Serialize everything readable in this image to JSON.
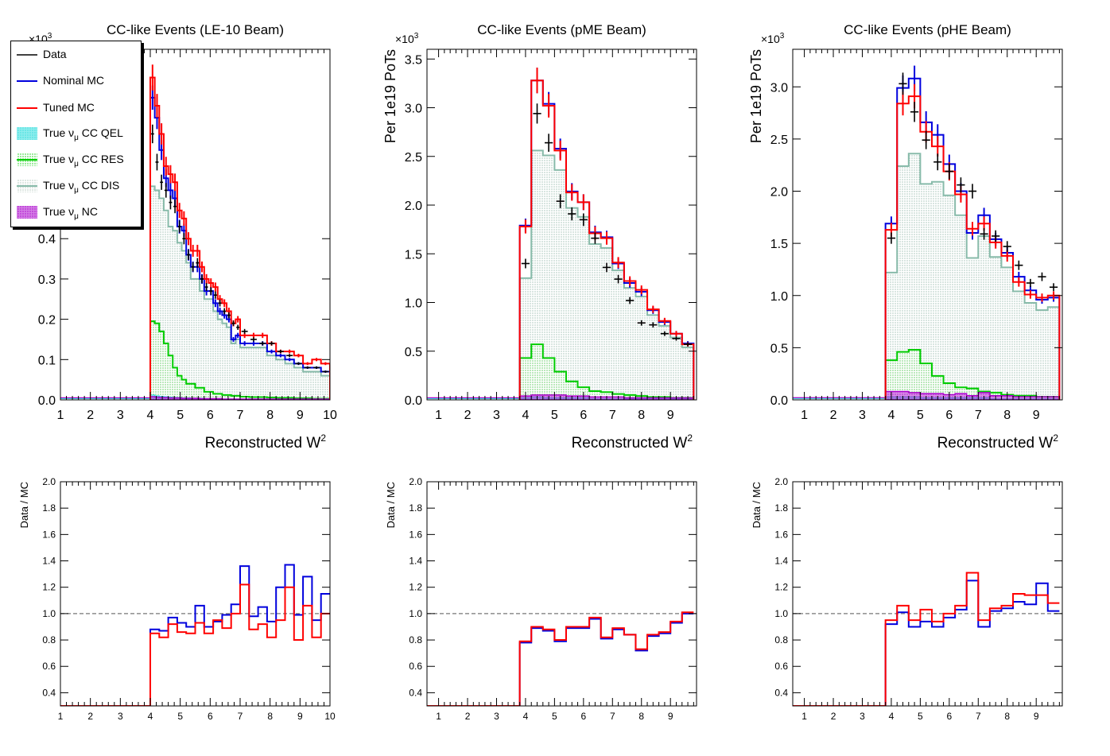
{
  "colors": {
    "data": "#000000",
    "nominal": "#0000dd",
    "tuned": "#ff0000",
    "qel": "#33dddd",
    "res": "#00cc00",
    "dis": "#88bbaa",
    "nc": "#aa00cc",
    "ref": "#777777"
  },
  "legend": {
    "data": "Data",
    "nominal": "Nominal MC",
    "tuned": "Tuned MC",
    "qel_pre": "True ν",
    "qel_sub": "μ",
    "qel_post": " CC QEL",
    "res_pre": "True ν",
    "res_sub": "μ",
    "res_post": " CC RES",
    "dis_pre": "True ν",
    "dis_sub": "μ",
    "dis_post": " CC DIS",
    "nc_pre": "True ν",
    "nc_sub": "μ",
    "nc_post": " NC"
  },
  "chart_data": [
    {
      "type": "histogram",
      "title": "CC-like Events (LE-10 Beam)",
      "xlabel": "Reconstructed W",
      "xlabel_sup": "2",
      "ylabel": "",
      "yscale_label": "×10",
      "yscale_sup": "3",
      "xlim": [
        1,
        10
      ],
      "ylim": [
        0,
        0.87
      ],
      "xticks": [
        "1",
        "2",
        "3",
        "4",
        "5",
        "6",
        "7",
        "8",
        "9",
        "10"
      ],
      "yticks": [
        "0.0",
        "0.1",
        "0.2",
        "0.3",
        "0.4"
      ],
      "bin_edges": [
        4.0,
        4.15,
        4.3,
        4.45,
        4.6,
        4.75,
        4.9,
        5.05,
        5.2,
        5.35,
        5.5,
        5.65,
        5.8,
        5.95,
        6.1,
        6.25,
        6.4,
        6.55,
        6.7,
        6.85,
        7.0,
        7.3,
        7.6,
        7.9,
        8.2,
        8.5,
        8.8,
        9.1,
        9.4,
        9.7,
        10.0
      ],
      "series": [
        {
          "name": "Data",
          "values": [
            0.66,
            0.59,
            0.54,
            0.52,
            0.49,
            0.48,
            0.43,
            0.4,
            0.36,
            0.33,
            0.34,
            0.3,
            0.28,
            0.27,
            0.26,
            0.24,
            0.22,
            0.21,
            0.19,
            0.18,
            0.17,
            0.15,
            0.14,
            0.14,
            0.12,
            0.11,
            0.09,
            0.08,
            0.08,
            0.07
          ]
        },
        {
          "name": "Nominal MC",
          "values": [
            0.75,
            0.7,
            0.62,
            0.55,
            0.52,
            0.5,
            0.43,
            0.42,
            0.36,
            0.33,
            0.33,
            0.3,
            0.27,
            0.27,
            0.24,
            0.22,
            0.21,
            0.2,
            0.15,
            0.16,
            0.14,
            0.14,
            0.14,
            0.12,
            0.11,
            0.1,
            0.09,
            0.08,
            0.08,
            0.07
          ]
        },
        {
          "name": "Tuned MC",
          "values": [
            0.8,
            0.73,
            0.66,
            0.58,
            0.56,
            0.54,
            0.47,
            0.45,
            0.4,
            0.37,
            0.37,
            0.33,
            0.3,
            0.29,
            0.28,
            0.25,
            0.24,
            0.22,
            0.19,
            0.2,
            0.16,
            0.16,
            0.16,
            0.14,
            0.12,
            0.12,
            0.11,
            0.09,
            0.1,
            0.09
          ]
        },
        {
          "name": "True νμ CC DIS",
          "values": [
            0.53,
            0.52,
            0.5,
            0.47,
            0.43,
            0.42,
            0.39,
            0.37,
            0.34,
            0.3,
            0.3,
            0.27,
            0.25,
            0.25,
            0.22,
            0.2,
            0.19,
            0.18,
            0.14,
            0.15,
            0.13,
            0.13,
            0.13,
            0.11,
            0.1,
            0.09,
            0.08,
            0.07,
            0.07,
            0.06
          ]
        },
        {
          "name": "True νμ CC RES",
          "values": [
            0.195,
            0.19,
            0.17,
            0.14,
            0.11,
            0.08,
            0.06,
            0.05,
            0.04,
            0.04,
            0.03,
            0.03,
            0.02,
            0.02,
            0.015,
            0.015,
            0.012,
            0.012,
            0.01,
            0.01,
            0.008,
            0.007,
            0.007,
            0.006,
            0.005,
            0.005,
            0.004,
            0.004,
            0.003,
            0.003
          ]
        },
        {
          "name": "True νμ CC QEL",
          "values": [
            0.012,
            0.01,
            0.009,
            0.008,
            0.007,
            0.006,
            0.006,
            0.005,
            0.005,
            0.004,
            0.004,
            0.004,
            0.003,
            0.003,
            0.003,
            0.003,
            0.002,
            0.002,
            0.002,
            0.002,
            0.002,
            0.002,
            0.002,
            0.002,
            0.002,
            0.002,
            0.002,
            0.002,
            0.002,
            0.002
          ]
        },
        {
          "name": "True νμ NC",
          "values": [
            0.008,
            0.007,
            0.006,
            0.006,
            0.005,
            0.005,
            0.005,
            0.004,
            0.004,
            0.004,
            0.004,
            0.003,
            0.003,
            0.003,
            0.003,
            0.003,
            0.002,
            0.002,
            0.002,
            0.002,
            0.002,
            0.002,
            0.002,
            0.002,
            0.002,
            0.002,
            0.002,
            0.002,
            0.002,
            0.002
          ]
        }
      ],
      "baseline": 0.005
    },
    {
      "type": "histogram",
      "title": "CC-like Events (pME Beam)",
      "xlabel": "Reconstructed W",
      "xlabel_sup": "2",
      "ylabel": "Per 1e19 PoTs",
      "yscale_label": "×10",
      "yscale_sup": "3",
      "xlim": [
        0.6,
        9.9
      ],
      "ylim": [
        0,
        3.6
      ],
      "xticks": [
        "1",
        "2",
        "3",
        "4",
        "5",
        "6",
        "7",
        "8",
        "9"
      ],
      "yticks": [
        "0.0",
        "0.5",
        "1.0",
        "1.5",
        "2.0",
        "2.5",
        "3.0",
        "3.5"
      ],
      "bin_edges": [
        3.8,
        4.2,
        4.6,
        5.0,
        5.4,
        5.8,
        6.2,
        6.6,
        7.0,
        7.4,
        7.8,
        8.2,
        8.6,
        9.0,
        9.4,
        9.8
      ],
      "series": [
        {
          "name": "Data",
          "values": [
            1.4,
            2.94,
            2.64,
            2.04,
            1.91,
            1.85,
            1.66,
            1.36,
            1.24,
            1.02,
            0.79,
            0.77,
            0.68,
            0.63,
            0.57
          ]
        },
        {
          "name": "Nominal MC",
          "values": [
            1.79,
            3.28,
            3.04,
            2.58,
            2.14,
            2.03,
            1.72,
            1.67,
            1.4,
            1.2,
            1.11,
            0.92,
            0.8,
            0.68,
            0.58
          ]
        },
        {
          "name": "Tuned MC",
          "values": [
            1.78,
            3.28,
            3.02,
            2.56,
            2.13,
            2.03,
            1.71,
            1.66,
            1.41,
            1.22,
            1.13,
            0.93,
            0.81,
            0.68,
            0.57
          ]
        },
        {
          "name": "True νμ CC DIS",
          "values": [
            1.25,
            2.56,
            2.51,
            2.36,
            1.97,
            1.88,
            1.6,
            1.56,
            1.33,
            1.15,
            1.06,
            0.87,
            0.76,
            0.64,
            0.54
          ]
        },
        {
          "name": "True νμ CC RES",
          "values": [
            0.43,
            0.57,
            0.43,
            0.29,
            0.19,
            0.13,
            0.09,
            0.08,
            0.06,
            0.05,
            0.04,
            0.03,
            0.03,
            0.02,
            0.02
          ]
        },
        {
          "name": "True νμ CC QEL",
          "values": [
            0.02,
            0.03,
            0.02,
            0.02,
            0.02,
            0.02,
            0.01,
            0.01,
            0.01,
            0.01,
            0.01,
            0.01,
            0.01,
            0.01,
            0.01
          ]
        },
        {
          "name": "True νμ NC",
          "values": [
            0.04,
            0.05,
            0.05,
            0.05,
            0.04,
            0.04,
            0.03,
            0.03,
            0.03,
            0.02,
            0.02,
            0.02,
            0.02,
            0.02,
            0.02
          ]
        }
      ],
      "baseline": 0.02
    },
    {
      "type": "histogram",
      "title": "CC-like Events (pHE Beam)",
      "xlabel": "Reconstructed W",
      "xlabel_sup": "2",
      "ylabel": "Per 1e19 PoTs",
      "yscale_label": "×10",
      "yscale_sup": "3",
      "xlim": [
        0.6,
        9.9
      ],
      "ylim": [
        0,
        3.36
      ],
      "xticks": [
        "1",
        "2",
        "3",
        "4",
        "5",
        "6",
        "7",
        "8",
        "9"
      ],
      "yticks": [
        "0.0",
        "0.5",
        "1.0",
        "1.5",
        "2.0",
        "2.5",
        "3.0"
      ],
      "bin_edges": [
        3.8,
        4.2,
        4.6,
        5.0,
        5.4,
        5.8,
        6.2,
        6.6,
        7.0,
        7.4,
        7.8,
        8.2,
        8.6,
        9.0,
        9.4,
        9.8
      ],
      "series": [
        {
          "name": "Data",
          "values": [
            1.55,
            3.03,
            2.76,
            2.49,
            2.28,
            2.19,
            2.06,
            2.0,
            1.59,
            1.57,
            1.47,
            1.29,
            1.12,
            1.18,
            1.08
          ]
        },
        {
          "name": "Nominal MC",
          "values": [
            1.69,
            2.99,
            3.08,
            2.66,
            2.54,
            2.26,
            2.0,
            1.6,
            1.77,
            1.54,
            1.41,
            1.18,
            1.05,
            0.96,
            0.98
          ]
        },
        {
          "name": "Tuned MC",
          "values": [
            1.63,
            2.84,
            2.91,
            2.57,
            2.43,
            2.19,
            1.97,
            1.64,
            1.69,
            1.51,
            1.38,
            1.13,
            1.01,
            0.98,
            1.0
          ]
        },
        {
          "name": "True νμ CC DIS",
          "values": [
            1.22,
            2.24,
            2.36,
            2.07,
            2.09,
            1.96,
            1.77,
            1.36,
            1.57,
            1.37,
            1.27,
            1.04,
            0.93,
            0.86,
            0.89
          ]
        },
        {
          "name": "True νμ CC RES",
          "values": [
            0.38,
            0.46,
            0.48,
            0.35,
            0.23,
            0.16,
            0.12,
            0.11,
            0.08,
            0.07,
            0.05,
            0.04,
            0.04,
            0.03,
            0.03
          ]
        },
        {
          "name": "True νμ CC QEL",
          "values": [
            0.03,
            0.03,
            0.03,
            0.02,
            0.02,
            0.02,
            0.02,
            0.02,
            0.02,
            0.01,
            0.01,
            0.01,
            0.01,
            0.01,
            0.01
          ]
        },
        {
          "name": "True νμ NC",
          "values": [
            0.08,
            0.08,
            0.07,
            0.06,
            0.06,
            0.05,
            0.06,
            0.04,
            0.07,
            0.04,
            0.04,
            0.03,
            0.03,
            0.03,
            0.03
          ]
        }
      ],
      "baseline": 0.02
    },
    {
      "type": "ratio",
      "ylabel": "Data / MC",
      "xlim": [
        1,
        10
      ],
      "ylim": [
        0.3,
        2.0
      ],
      "xticks": [
        "1",
        "2",
        "3",
        "4",
        "5",
        "6",
        "7",
        "8",
        "9",
        "10"
      ],
      "yticks": [
        "0.4",
        "0.6",
        "0.8",
        "1.0",
        "1.2",
        "1.4",
        "1.6",
        "1.8",
        "2.0"
      ],
      "reference": 1.0,
      "bin_edges": [
        4.0,
        4.3,
        4.6,
        4.9,
        5.2,
        5.5,
        5.8,
        6.1,
        6.4,
        6.7,
        7.0,
        7.3,
        7.6,
        7.9,
        8.2,
        8.5,
        8.8,
        9.1,
        9.4,
        9.7,
        10.0
      ],
      "series": [
        {
          "name": "Nominal MC",
          "values": [
            0.88,
            0.87,
            0.97,
            0.93,
            0.9,
            1.06,
            0.9,
            0.94,
            0.99,
            1.07,
            1.36,
            0.98,
            1.05,
            0.94,
            1.2,
            1.37,
            0.99,
            1.28,
            0.95,
            1.15
          ]
        },
        {
          "name": "Tuned MC",
          "values": [
            0.85,
            0.82,
            0.92,
            0.86,
            0.85,
            0.93,
            0.85,
            0.95,
            0.89,
            1.0,
            1.22,
            0.88,
            0.92,
            0.82,
            0.95,
            1.2,
            0.8,
            1.06,
            0.82,
            1.0
          ]
        }
      ]
    },
    {
      "type": "ratio",
      "ylabel": "Data / MC",
      "xlim": [
        0.6,
        9.9
      ],
      "ylim": [
        0.3,
        2.0
      ],
      "xticks": [
        "1",
        "2",
        "3",
        "4",
        "5",
        "6",
        "7",
        "8",
        "9"
      ],
      "yticks": [
        "0.4",
        "0.6",
        "0.8",
        "1.0",
        "1.2",
        "1.4",
        "1.6",
        "1.8",
        "2.0"
      ],
      "reference": 1.0,
      "bin_edges": [
        3.8,
        4.2,
        4.6,
        5.0,
        5.4,
        5.8,
        6.2,
        6.6,
        7.0,
        7.4,
        7.8,
        8.2,
        8.6,
        9.0,
        9.4,
        9.8
      ],
      "series": [
        {
          "name": "Nominal MC",
          "values": [
            0.78,
            0.89,
            0.87,
            0.79,
            0.89,
            0.89,
            0.96,
            0.81,
            0.88,
            0.84,
            0.72,
            0.83,
            0.85,
            0.93,
            1.0
          ]
        },
        {
          "name": "Tuned MC",
          "values": [
            0.79,
            0.9,
            0.88,
            0.8,
            0.9,
            0.9,
            0.97,
            0.82,
            0.89,
            0.84,
            0.73,
            0.84,
            0.86,
            0.94,
            1.01
          ]
        }
      ]
    },
    {
      "type": "ratio",
      "ylabel": "Data / MC",
      "xlim": [
        0.6,
        9.9
      ],
      "ylim": [
        0.3,
        2.0
      ],
      "xticks": [
        "1",
        "2",
        "3",
        "4",
        "5",
        "6",
        "7",
        "8",
        "9"
      ],
      "yticks": [
        "0.4",
        "0.6",
        "0.8",
        "1.0",
        "1.2",
        "1.4",
        "1.6",
        "1.8",
        "2.0"
      ],
      "reference": 1.0,
      "bin_edges": [
        3.8,
        4.2,
        4.6,
        5.0,
        5.4,
        5.8,
        6.2,
        6.6,
        7.0,
        7.4,
        7.8,
        8.2,
        8.6,
        9.0,
        9.4,
        9.8
      ],
      "series": [
        {
          "name": "Nominal MC",
          "values": [
            0.92,
            1.01,
            0.9,
            0.94,
            0.9,
            0.97,
            1.03,
            1.25,
            0.9,
            1.02,
            1.04,
            1.09,
            1.07,
            1.23,
            1.02
          ]
        },
        {
          "name": "Tuned MC",
          "values": [
            0.95,
            1.06,
            0.95,
            1.03,
            0.94,
            1.0,
            1.06,
            1.31,
            0.95,
            1.04,
            1.06,
            1.15,
            1.14,
            1.14,
            1.08
          ]
        }
      ]
    }
  ]
}
